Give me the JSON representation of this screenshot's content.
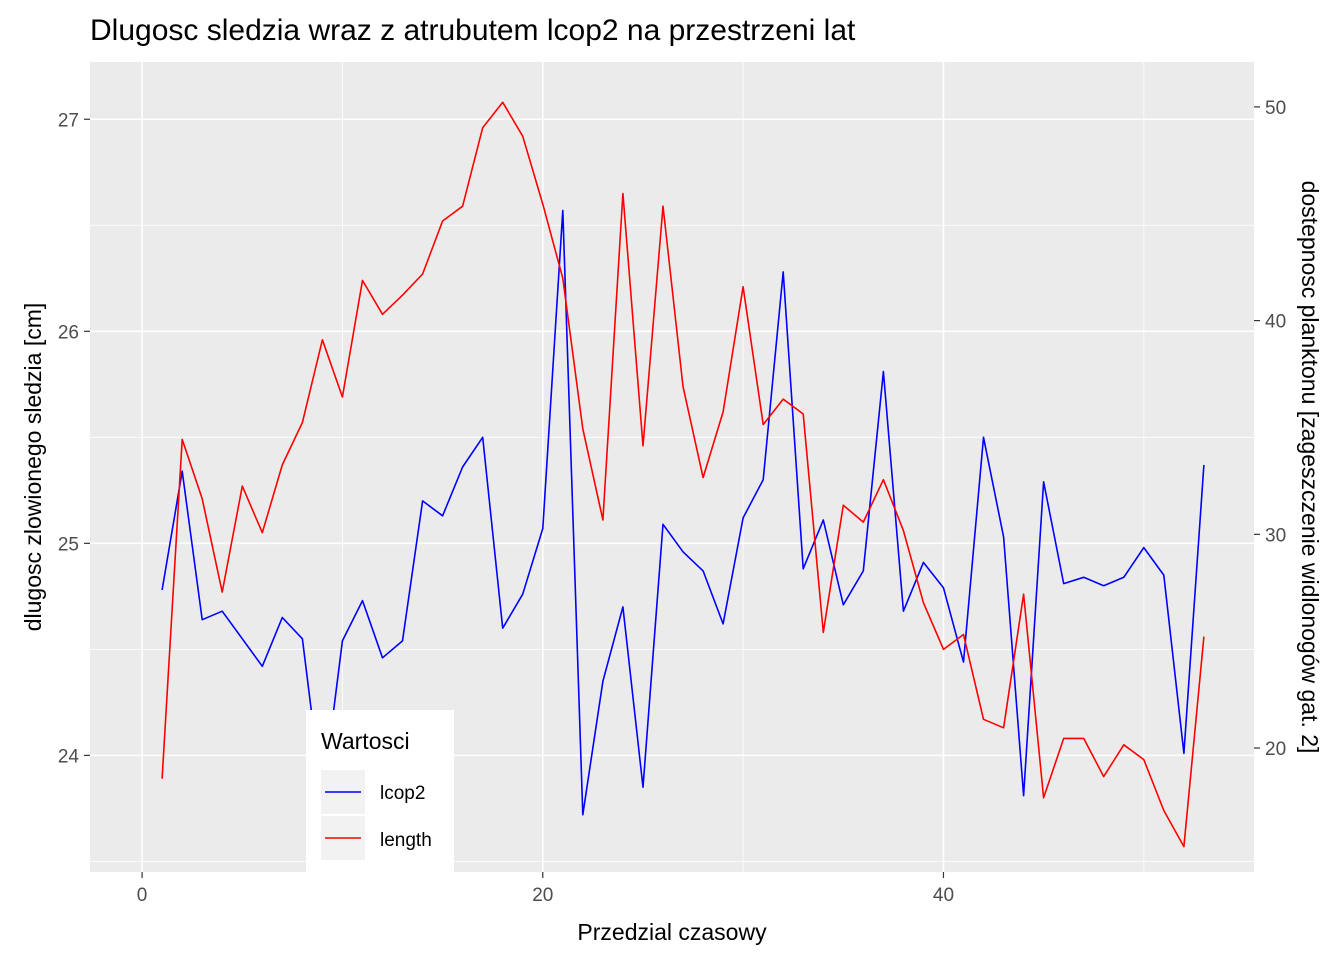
{
  "chart_data": {
    "type": "line",
    "title": "Dlugosc sledzia wraz z atrubutem lcop2 na przestrzeni lat",
    "xlabel": "Przedzial czasowy",
    "ylabel": "dlugosc zlowionego sledzia [cm]",
    "ylabel_right": "dostepnosc planktonu [zageszczenie widlonogów gat. 2]",
    "xlim": [
      -2.6,
      55.5
    ],
    "ylim": [
      23.45,
      27.27
    ],
    "ylim_right": [
      14.2,
      52.1
    ],
    "x_ticks": [
      0,
      20,
      40
    ],
    "y_ticks": [
      24,
      25,
      26,
      27
    ],
    "y_ticks_right": [
      20,
      30,
      40,
      50
    ],
    "grid": true,
    "legend": {
      "title": "Wartosci",
      "position": "bottom-left, inside plot"
    },
    "x": [
      1,
      2,
      3,
      4,
      5,
      6,
      7,
      8,
      9,
      10,
      11,
      12,
      13,
      14,
      15,
      16,
      17,
      18,
      19,
      20,
      21,
      22,
      23,
      24,
      25,
      26,
      27,
      28,
      29,
      30,
      31,
      32,
      33,
      34,
      35,
      36,
      37,
      38,
      39,
      40,
      41,
      42,
      43,
      44,
      45,
      46,
      47,
      48,
      49,
      50,
      51,
      52,
      53
    ],
    "series": [
      {
        "name": "lcop2",
        "color": "#0000ff",
        "axis": "left",
        "values": [
          24.78,
          25.34,
          24.64,
          24.68,
          24.55,
          24.42,
          24.65,
          24.55,
          23.79,
          24.54,
          24.73,
          24.46,
          24.54,
          25.2,
          25.13,
          25.36,
          25.5,
          24.6,
          24.76,
          25.07,
          26.57,
          23.72,
          24.35,
          24.7,
          23.85,
          25.09,
          24.96,
          24.87,
          24.62,
          25.12,
          25.3,
          26.28,
          24.88,
          25.11,
          24.71,
          24.87,
          25.81,
          24.68,
          24.91,
          24.79,
          24.44,
          25.5,
          25.03,
          23.81,
          25.29,
          24.81,
          24.84,
          24.8,
          24.84,
          24.98,
          24.85,
          24.01,
          25.37
        ]
      },
      {
        "name": "length",
        "color": "#ff0000",
        "axis": "left",
        "values": [
          23.89,
          25.49,
          25.21,
          24.77,
          25.27,
          25.05,
          25.37,
          25.57,
          25.96,
          25.69,
          26.24,
          26.08,
          26.17,
          26.27,
          26.52,
          26.59,
          26.96,
          27.08,
          26.92,
          26.6,
          26.25,
          25.54,
          25.11,
          26.65,
          25.46,
          26.59,
          25.74,
          25.31,
          25.62,
          26.21,
          25.56,
          25.68,
          25.61,
          24.58,
          25.18,
          25.1,
          25.3,
          25.06,
          24.72,
          24.5,
          24.57,
          24.17,
          24.13,
          24.76,
          23.8,
          24.08,
          24.08,
          23.9,
          24.05,
          23.98,
          23.74,
          23.57,
          24.56
        ]
      }
    ]
  }
}
